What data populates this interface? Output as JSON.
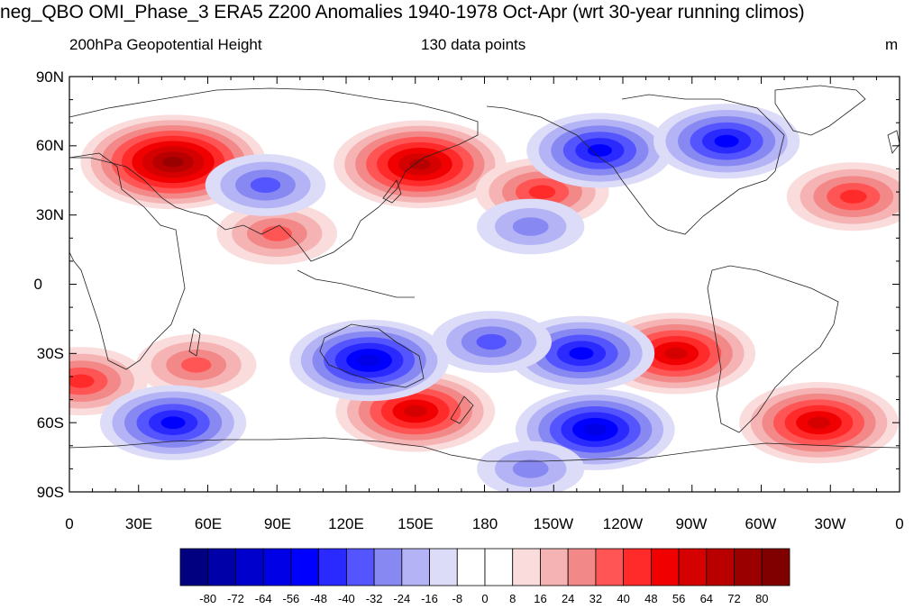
{
  "title": "neg_QBO OMI_Phase_3 ERA5 Z200 Anomalies 1940-1978 Oct-Apr (wrt 30-year running climos)",
  "left_subtitle": "200hPa Geopotential Height",
  "center_subtitle": "130 data points",
  "units": "m",
  "lat_labels": [
    "90N",
    "60N",
    "30N",
    "0",
    "30S",
    "60S",
    "90S"
  ],
  "lon_labels": [
    "0",
    "30E",
    "60E",
    "90E",
    "120E",
    "150E",
    "180",
    "150W",
    "120W",
    "90W",
    "60W",
    "30W",
    "0"
  ],
  "colorbar": {
    "labels": [
      "-80",
      "-72",
      "-64",
      "-56",
      "-48",
      "-40",
      "-32",
      "-24",
      "-16",
      "-8",
      "0",
      "8",
      "16",
      "24",
      "32",
      "40",
      "48",
      "56",
      "64",
      "72",
      "80"
    ],
    "colors": [
      "#000080",
      "#0000a8",
      "#0000cd",
      "#0000e6",
      "#0000ff",
      "#2a2aff",
      "#5555ff",
      "#8888f2",
      "#b3b3f5",
      "#dcdcf8",
      "#ffffff",
      "#ffffff",
      "#fadcdc",
      "#f5b3b3",
      "#f28888",
      "#ff5555",
      "#ff2a2a",
      "#f00000",
      "#d50000",
      "#b80000",
      "#9a0000",
      "#800000"
    ]
  },
  "chart_data": {
    "type": "heatmap",
    "map": "global cylindrical equidistant",
    "lon_range": [
      0,
      360
    ],
    "lat_range": [
      -90,
      90
    ],
    "features": [
      {
        "sign": "+",
        "lon": 45,
        "lat": 53,
        "peak": 72
      },
      {
        "sign": "+",
        "lon": 152,
        "lat": 52,
        "peak": 64
      },
      {
        "sign": "+",
        "lon": 90,
        "lat": 22,
        "peak": 32
      },
      {
        "sign": "+",
        "lon": 205,
        "lat": 40,
        "peak": 40
      },
      {
        "sign": "+",
        "lon": 340,
        "lat": 38,
        "peak": 40
      },
      {
        "sign": "+",
        "lon": 263,
        "lat": -30,
        "peak": 56
      },
      {
        "sign": "+",
        "lon": 150,
        "lat": -55,
        "peak": 56
      },
      {
        "sign": "+",
        "lon": 325,
        "lat": -60,
        "peak": 56
      },
      {
        "sign": "+",
        "lon": 5,
        "lat": -42,
        "peak": 40
      },
      {
        "sign": "+",
        "lon": 55,
        "lat": -35,
        "peak": 32
      },
      {
        "sign": "-",
        "lon": 85,
        "lat": 43,
        "peak": -32
      },
      {
        "sign": "-",
        "lon": 230,
        "lat": 58,
        "peak": -48
      },
      {
        "sign": "-",
        "lon": 285,
        "lat": 62,
        "peak": -48
      },
      {
        "sign": "-",
        "lon": 130,
        "lat": -33,
        "peak": -56
      },
      {
        "sign": "-",
        "lon": 222,
        "lat": -30,
        "peak": -48
      },
      {
        "sign": "-",
        "lon": 228,
        "lat": -63,
        "peak": -56
      },
      {
        "sign": "-",
        "lon": 45,
        "lat": -60,
        "peak": -48
      },
      {
        "sign": "-",
        "lon": 183,
        "lat": -25,
        "peak": -32
      },
      {
        "sign": "-",
        "lon": 200,
        "lat": 25,
        "peak": -24
      },
      {
        "sign": "-",
        "lon": 200,
        "lat": -80,
        "peak": -24
      }
    ]
  }
}
